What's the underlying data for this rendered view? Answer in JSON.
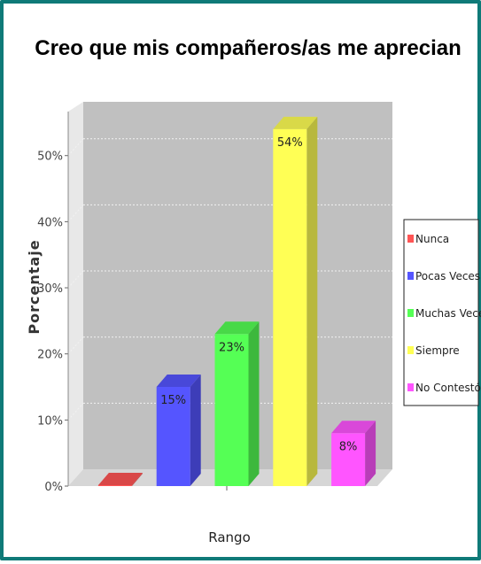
{
  "chart_data": {
    "type": "bar",
    "title": "Creo que mis compañeros/as me aprecian",
    "xlabel": "Rango",
    "ylabel": "Porcentaje",
    "ylim": [
      0,
      58
    ],
    "yticks": [
      0,
      10,
      20,
      30,
      40,
      50
    ],
    "ytick_labels": [
      "0%",
      "10%",
      "20%",
      "30%",
      "40%",
      "50%"
    ],
    "grid": true,
    "legend_position": "right",
    "three_d": true,
    "categories": [
      "Nunca",
      "Pocas Veces",
      "Muchas Veces",
      "Siempre",
      "No Contestó"
    ],
    "values": [
      0,
      15,
      23,
      54,
      8
    ],
    "data_labels": [
      "",
      "15%",
      "23%",
      "54%",
      "8%"
    ],
    "colors": [
      "#ff5555",
      "#5555ff",
      "#55ff55",
      "#ffff55",
      "#ff55ff"
    ],
    "plot_background": "#c0c0c0"
  }
}
